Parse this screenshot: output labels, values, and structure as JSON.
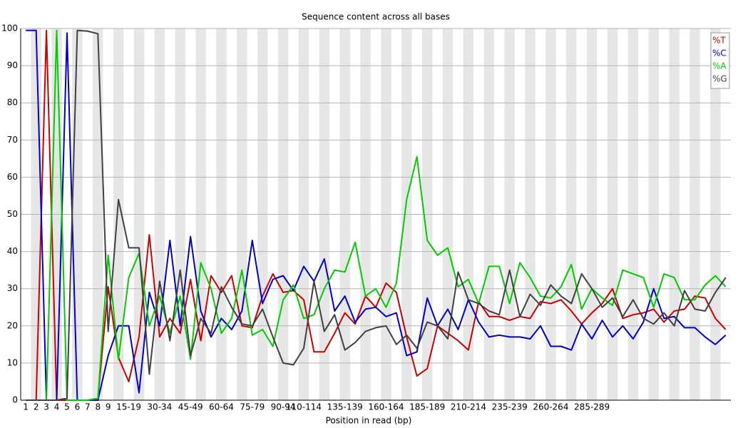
{
  "chart_data": {
    "type": "line",
    "title": "Sequence content across all bases",
    "x_label": "Position in read (bp)",
    "categories": [
      "1",
      "2",
      "3",
      "4",
      "5",
      "6",
      "7",
      "8",
      "9",
      null,
      "15-19",
      null,
      null,
      "30-34",
      null,
      null,
      "45-49",
      null,
      null,
      "60-64",
      null,
      null,
      "75-79",
      null,
      null,
      "90-94",
      null,
      "110-114",
      null,
      null,
      null,
      "135-139",
      null,
      null,
      null,
      "160-164",
      null,
      null,
      null,
      "185-189",
      null,
      null,
      null,
      "210-214",
      null,
      null,
      null,
      "235-239",
      null,
      null,
      null,
      "260-264",
      null,
      null,
      null,
      "285-289",
      null,
      null,
      null,
      null,
      null,
      null,
      null,
      null,
      null,
      null,
      null,
      null,
      null
    ],
    "series": [
      {
        "name": "%T",
        "color": "#cc0000",
        "values": [
          0,
          0,
          99.5,
          0,
          0,
          0,
          0,
          0.5,
          30.5,
          11.5,
          5,
          17,
          44.5,
          17,
          22,
          18,
          32.5,
          16,
          33.5,
          29,
          33.5,
          20,
          19.5,
          28,
          34,
          29,
          29.5,
          27,
          13,
          13,
          18,
          23.5,
          20.5,
          28,
          25,
          31.5,
          29,
          17,
          6.5,
          8.5,
          20,
          18,
          16,
          13.5,
          26.5,
          22.5,
          22.5,
          21.5,
          22.5,
          22,
          26.5,
          26,
          27,
          24,
          20.5,
          23.5,
          26,
          30,
          22,
          23,
          23.5,
          24.5,
          21,
          24,
          24.5,
          28,
          27.5,
          22,
          19
        ]
      },
      {
        "name": "%C",
        "color": "#0000cc",
        "values": [
          99.5,
          99.5,
          0,
          0,
          98.8,
          0,
          0,
          0,
          12,
          20,
          20,
          2,
          29,
          20,
          43,
          20,
          44,
          24,
          17,
          22,
          19,
          24,
          43,
          26,
          32.5,
          33.5,
          29.5,
          36,
          32,
          38,
          24,
          28,
          21,
          24.5,
          25,
          22.5,
          23.5,
          12,
          13,
          27.5,
          20,
          24.5,
          19,
          27,
          21,
          17,
          17.5,
          17,
          17,
          16.5,
          20,
          14.5,
          14.5,
          13.5,
          20.5,
          16.5,
          21.5,
          17,
          20,
          16.5,
          21,
          30,
          22,
          22.5,
          19.5,
          19.5,
          17,
          15,
          17.5
        ]
      },
      {
        "name": "%A",
        "color": "#00cc00",
        "values": [
          0,
          0,
          0,
          99.5,
          0,
          0,
          0,
          0.5,
          39,
          11,
          33,
          39.5,
          20,
          28,
          18,
          28,
          11,
          37,
          30,
          18,
          22,
          35,
          17.5,
          19,
          14.5,
          27,
          31,
          22,
          23,
          30,
          35,
          34.5,
          42.5,
          28,
          30,
          25,
          31.5,
          54,
          65.5,
          43,
          39,
          41,
          30.5,
          32.5,
          26,
          36,
          36,
          26,
          37,
          33,
          28,
          27.5,
          30.5,
          36.5,
          24.5,
          30,
          27.5,
          25.5,
          35,
          34,
          33,
          25,
          34,
          33,
          27,
          27,
          31,
          33.5,
          30.5
        ]
      },
      {
        "name": "%G",
        "color": "#404040",
        "values": [
          0,
          0,
          0,
          0,
          0.5,
          99.5,
          99.3,
          98.6,
          18.5,
          54,
          41,
          41,
          7,
          32,
          16,
          35,
          12,
          22,
          18,
          30.5,
          25,
          20.5,
          20,
          24.5,
          17,
          10,
          9.5,
          14,
          32,
          18.5,
          23,
          13.5,
          15.5,
          18.5,
          19.5,
          20,
          15,
          17.5,
          14,
          21,
          20,
          16.5,
          34.5,
          27,
          26,
          24,
          23,
          35,
          22.5,
          28.5,
          25.5,
          31,
          28,
          26,
          34,
          30,
          25,
          27.5,
          22.5,
          27,
          22,
          20.5,
          23.5,
          20,
          29.5,
          24.5,
          24,
          29,
          33
        ]
      }
    ],
    "ylim": [
      0,
      100
    ],
    "yticks": [
      0,
      10,
      20,
      30,
      40,
      50,
      60,
      70,
      80,
      90,
      100
    ],
    "grid": true,
    "legend": "top-right"
  }
}
